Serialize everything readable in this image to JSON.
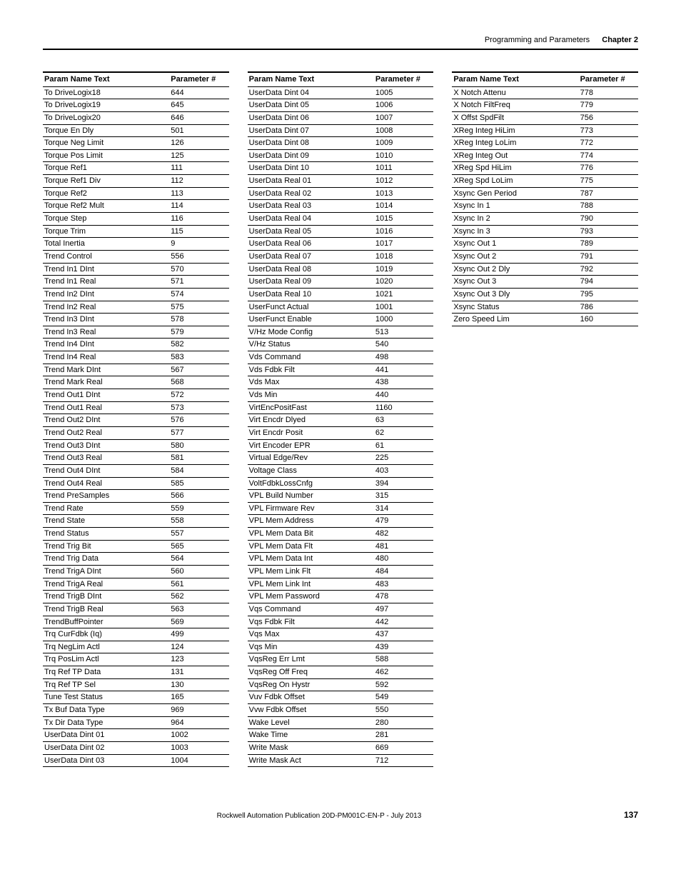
{
  "header": {
    "section": "Programming and Parameters",
    "chapter": "Chapter 2"
  },
  "table_headers": {
    "name": "Param Name Text",
    "num": "Parameter #"
  },
  "columns": [
    [
      [
        "To DriveLogix18",
        "644"
      ],
      [
        "To DriveLogix19",
        "645"
      ],
      [
        "To DriveLogix20",
        "646"
      ],
      [
        "Torque En Dly",
        "501"
      ],
      [
        "Torque Neg Limit",
        "126"
      ],
      [
        "Torque Pos Limit",
        "125"
      ],
      [
        "Torque Ref1",
        "111"
      ],
      [
        "Torque Ref1 Div",
        "112"
      ],
      [
        "Torque Ref2",
        "113"
      ],
      [
        "Torque Ref2 Mult",
        "114"
      ],
      [
        "Torque Step",
        "116"
      ],
      [
        "Torque Trim",
        "115"
      ],
      [
        "Total Inertia",
        "9"
      ],
      [
        "Trend Control",
        "556"
      ],
      [
        "Trend In1 DInt",
        "570"
      ],
      [
        "Trend In1 Real",
        "571"
      ],
      [
        "Trend In2 DInt",
        "574"
      ],
      [
        "Trend In2 Real",
        "575"
      ],
      [
        "Trend In3 DInt",
        "578"
      ],
      [
        "Trend In3 Real",
        "579"
      ],
      [
        "Trend In4 DInt",
        "582"
      ],
      [
        "Trend In4 Real",
        "583"
      ],
      [
        "Trend Mark DInt",
        "567"
      ],
      [
        "Trend Mark Real",
        "568"
      ],
      [
        "Trend Out1 DInt",
        "572"
      ],
      [
        "Trend Out1 Real",
        "573"
      ],
      [
        "Trend Out2 DInt",
        "576"
      ],
      [
        "Trend Out2 Real",
        "577"
      ],
      [
        "Trend Out3 DInt",
        "580"
      ],
      [
        "Trend Out3 Real",
        "581"
      ],
      [
        "Trend Out4 DInt",
        "584"
      ],
      [
        "Trend Out4 Real",
        "585"
      ],
      [
        "Trend PreSamples",
        "566"
      ],
      [
        "Trend Rate",
        "559"
      ],
      [
        "Trend State",
        "558"
      ],
      [
        "Trend Status",
        "557"
      ],
      [
        "Trend Trig Bit",
        "565"
      ],
      [
        "Trend Trig Data",
        "564"
      ],
      [
        "Trend TrigA DInt",
        "560"
      ],
      [
        "Trend TrigA Real",
        "561"
      ],
      [
        "Trend TrigB DInt",
        "562"
      ],
      [
        "Trend TrigB Real",
        "563"
      ],
      [
        "TrendBuffPointer",
        "569"
      ],
      [
        "Trq CurFdbk (Iq)",
        "499"
      ],
      [
        "Trq NegLim Actl",
        "124"
      ],
      [
        "Trq PosLim Actl",
        "123"
      ],
      [
        "Trq Ref TP Data",
        "131"
      ],
      [
        "Trq Ref TP Sel",
        "130"
      ],
      [
        "Tune Test Status",
        "165"
      ],
      [
        "Tx Buf Data Type",
        "969"
      ],
      [
        "Tx Dir Data Type",
        "964"
      ],
      [
        "UserData Dint 01",
        "1002"
      ],
      [
        "UserData Dint 02",
        "1003"
      ],
      [
        "UserData Dint 03",
        "1004"
      ]
    ],
    [
      [
        "UserData Dint 04",
        "1005"
      ],
      [
        "UserData Dint 05",
        "1006"
      ],
      [
        "UserData Dint 06",
        "1007"
      ],
      [
        "UserData Dint 07",
        "1008"
      ],
      [
        "UserData Dint 08",
        "1009"
      ],
      [
        "UserData Dint 09",
        "1010"
      ],
      [
        "UserData Dint 10",
        "1011"
      ],
      [
        "UserData Real 01",
        "1012"
      ],
      [
        "UserData Real 02",
        "1013"
      ],
      [
        "UserData Real 03",
        "1014"
      ],
      [
        "UserData Real 04",
        "1015"
      ],
      [
        "UserData Real 05",
        "1016"
      ],
      [
        "UserData Real 06",
        "1017"
      ],
      [
        "UserData Real 07",
        "1018"
      ],
      [
        "UserData Real 08",
        "1019"
      ],
      [
        "UserData Real 09",
        "1020"
      ],
      [
        "UserData Real 10",
        "1021"
      ],
      [
        "UserFunct Actual",
        "1001"
      ],
      [
        "UserFunct Enable",
        "1000"
      ],
      [
        "V/Hz Mode Config",
        "513"
      ],
      [
        "V/Hz Status",
        "540"
      ],
      [
        "Vds Command",
        "498"
      ],
      [
        "Vds Fdbk Filt",
        "441"
      ],
      [
        "Vds Max",
        "438"
      ],
      [
        "Vds Min",
        "440"
      ],
      [
        "VirtEncPositFast",
        "1160"
      ],
      [
        "Virt Encdr Dlyed",
        "63"
      ],
      [
        "Virt Encdr Posit",
        "62"
      ],
      [
        "Virt Encoder EPR",
        "61"
      ],
      [
        "Virtual Edge/Rev",
        "225"
      ],
      [
        "Voltage Class",
        "403"
      ],
      [
        "VoltFdbkLossCnfg",
        "394"
      ],
      [
        "VPL Build Number",
        "315"
      ],
      [
        "VPL Firmware Rev",
        "314"
      ],
      [
        "VPL Mem Address",
        "479"
      ],
      [
        "VPL Mem Data Bit",
        "482"
      ],
      [
        "VPL Mem Data Flt",
        "481"
      ],
      [
        "VPL Mem Data Int",
        "480"
      ],
      [
        "VPL Mem Link Flt",
        "484"
      ],
      [
        "VPL Mem Link Int",
        "483"
      ],
      [
        "VPL Mem Password",
        "478"
      ],
      [
        "Vqs Command",
        "497"
      ],
      [
        "Vqs Fdbk Filt",
        "442"
      ],
      [
        "Vqs Max",
        "437"
      ],
      [
        "Vqs Min",
        "439"
      ],
      [
        "VqsReg Err Lmt",
        "588"
      ],
      [
        "VqsReg Off Freq",
        "462"
      ],
      [
        "VqsReg On Hystr",
        "592"
      ],
      [
        "Vuv Fdbk Offset",
        "549"
      ],
      [
        "Vvw Fdbk Offset",
        "550"
      ],
      [
        "Wake Level",
        "280"
      ],
      [
        "Wake Time",
        "281"
      ],
      [
        "Write Mask",
        "669"
      ],
      [
        "Write Mask Act",
        "712"
      ]
    ],
    [
      [
        "X Notch Attenu",
        "778"
      ],
      [
        "X Notch FiltFreq",
        "779"
      ],
      [
        "X Offst SpdFilt",
        "756"
      ],
      [
        "XReg Integ HiLim",
        "773"
      ],
      [
        "XReg Integ LoLim",
        "772"
      ],
      [
        "XReg Integ Out",
        "774"
      ],
      [
        "XReg Spd HiLim",
        "776"
      ],
      [
        "XReg Spd LoLim",
        "775"
      ],
      [
        "Xsync Gen Period",
        "787"
      ],
      [
        "Xsync In 1",
        "788"
      ],
      [
        "Xsync In 2",
        "790"
      ],
      [
        "Xsync In 3",
        "793"
      ],
      [
        "Xsync Out 1",
        "789"
      ],
      [
        "Xsync Out 2",
        "791"
      ],
      [
        "Xsync Out 2 Dly",
        "792"
      ],
      [
        "Xsync Out 3",
        "794"
      ],
      [
        "Xsync Out 3 Dly",
        "795"
      ],
      [
        "Xsync Status",
        "786"
      ],
      [
        "Zero Speed Lim",
        "160"
      ]
    ]
  ],
  "footer": {
    "publication": "Rockwell Automation Publication 20D-PM001C-EN-P - July 2013",
    "page": "137"
  }
}
